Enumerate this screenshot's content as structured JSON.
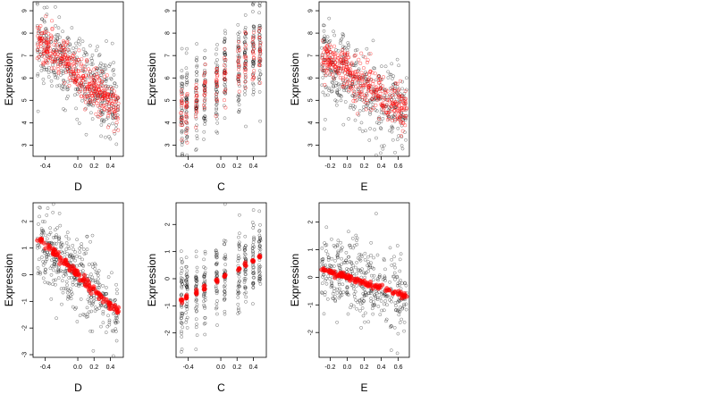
{
  "colors": {
    "points": "#000000",
    "fitted": "#ff0000",
    "frame": "#000000"
  },
  "chart_data": [
    {
      "type": "scatter",
      "xlabel": "D",
      "ylabel": "Expression",
      "xlim": [
        -0.55,
        0.56
      ],
      "ylim": [
        2.5,
        9.4
      ],
      "xticks": [
        -0.4,
        0.0,
        0.2,
        0.4
      ],
      "xtick_labels": [
        "-0.4",
        "0.0",
        "0.2",
        "0.4"
      ],
      "yticks": [
        3,
        4,
        5,
        6,
        7,
        8,
        9
      ],
      "ytick_labels": [
        "3",
        "4",
        "5",
        "6",
        "7",
        "8",
        "9"
      ],
      "observed": {
        "n": 400,
        "x_range": [
          -0.5,
          0.5
        ],
        "trend_start": 7.5,
        "trend_end": 4.9,
        "spread": 0.85
      },
      "fitted": {
        "style": "open",
        "n": 400,
        "x_range": [
          -0.5,
          0.5
        ],
        "trend_start": 7.7,
        "trend_end": 4.6,
        "spread": 0.45
      }
    },
    {
      "type": "scatter",
      "xlabel": "C",
      "ylabel": "Expression",
      "xlim": [
        -0.55,
        0.56
      ],
      "ylim": [
        2.5,
        9.4
      ],
      "xticks": [
        -0.4,
        0.0,
        0.2,
        0.4
      ],
      "xtick_labels": [
        "-0.4",
        "0.0",
        "0.2",
        "0.4"
      ],
      "yticks": [
        3,
        4,
        5,
        6,
        7,
        8,
        9
      ],
      "ytick_labels": [
        "3",
        "4",
        "5",
        "6",
        "7",
        "8",
        "9"
      ],
      "observed": {
        "n": 400,
        "x_groups": [
          -0.48,
          -0.42,
          -0.3,
          -0.2,
          -0.05,
          0.05,
          0.22,
          0.3,
          0.4,
          0.48
        ],
        "trend_start": 4.5,
        "trend_end": 7.2,
        "spread": 1.1
      },
      "fitted": {
        "style": "open",
        "n": 160,
        "x_groups": [
          -0.48,
          -0.42,
          -0.3,
          -0.2,
          -0.05,
          0.05,
          0.22,
          0.3,
          0.4,
          0.48
        ],
        "trend_start": 4.5,
        "trend_end": 7.2,
        "spread": 0.6
      }
    },
    {
      "type": "scatter",
      "xlabel": "E",
      "ylabel": "Expression",
      "xlim": [
        -0.33,
        0.73
      ],
      "ylim": [
        2.5,
        9.4
      ],
      "xticks": [
        -0.2,
        0.0,
        0.2,
        0.4,
        0.6
      ],
      "xtick_labels": [
        "-0.2",
        "0.0",
        "0.2",
        "0.4",
        "0.6"
      ],
      "yticks": [
        3,
        4,
        5,
        6,
        7,
        8,
        9
      ],
      "ytick_labels": [
        "3",
        "4",
        "5",
        "6",
        "7",
        "8",
        "9"
      ],
      "observed": {
        "n": 400,
        "x_range": [
          -0.3,
          0.7
        ],
        "trend_start": 6.8,
        "trend_end": 4.2,
        "spread": 0.9
      },
      "fitted": {
        "style": "open",
        "n": 400,
        "x_range": [
          -0.3,
          0.7
        ],
        "trend_start": 7.0,
        "trend_end": 4.4,
        "spread": 0.5
      }
    },
    {
      "type": "scatter",
      "xlabel": "D",
      "ylabel": "Expression",
      "xlim": [
        -0.55,
        0.56
      ],
      "ylim": [
        -3.1,
        2.7
      ],
      "xticks": [
        -0.4,
        0.0,
        0.2,
        0.4
      ],
      "xtick_labels": [
        "-0.4",
        "0.0",
        "0.2",
        "0.4"
      ],
      "yticks": [
        -3,
        -2,
        -1,
        0,
        1,
        2
      ],
      "ytick_labels": [
        "-3",
        "-2",
        "-1",
        "0",
        "1",
        "2"
      ],
      "observed": {
        "n": 400,
        "x_range": [
          -0.5,
          0.5
        ],
        "trend_start": 1.4,
        "trend_end": -1.4,
        "spread": 0.7
      },
      "fitted": {
        "style": "filled",
        "n": 110,
        "x_range": [
          -0.5,
          0.5
        ],
        "trend_start": 1.4,
        "trend_end": -1.4,
        "spread": 0.08
      }
    },
    {
      "type": "scatter",
      "xlabel": "C",
      "ylabel": "Expression",
      "xlim": [
        -0.55,
        0.56
      ],
      "ylim": [
        -2.9,
        2.8
      ],
      "xticks": [
        -0.4,
        0.0,
        0.2,
        0.4
      ],
      "xtick_labels": [
        "-0.4",
        "0.0",
        "0.2",
        "0.4"
      ],
      "yticks": [
        -2,
        -1,
        0,
        1,
        2
      ],
      "ytick_labels": [
        "-2",
        "-1",
        "0",
        "1",
        "2"
      ],
      "observed": {
        "n": 400,
        "x_groups": [
          -0.48,
          -0.42,
          -0.3,
          -0.2,
          -0.05,
          0.05,
          0.22,
          0.3,
          0.4,
          0.48
        ],
        "trend_start": -0.8,
        "trend_end": 0.8,
        "spread": 0.75
      },
      "fitted": {
        "style": "filled",
        "n": 45,
        "x_groups": [
          -0.48,
          -0.42,
          -0.3,
          -0.2,
          -0.05,
          0.05,
          0.22,
          0.3,
          0.4,
          0.48
        ],
        "trend_start": -0.8,
        "trend_end": 0.8,
        "spread": 0.04
      }
    },
    {
      "type": "scatter",
      "xlabel": "E",
      "ylabel": "Expression",
      "xlim": [
        -0.33,
        0.73
      ],
      "ylim": [
        -2.9,
        2.7
      ],
      "xticks": [
        -0.2,
        0.0,
        0.2,
        0.4,
        0.6
      ],
      "xtick_labels": [
        "-0.2",
        "0.0",
        "0.2",
        "0.4",
        "0.6"
      ],
      "yticks": [
        -2,
        -1,
        0,
        1,
        2
      ],
      "ytick_labels": [
        "-2",
        "-1",
        "0",
        "1",
        "2"
      ],
      "observed": {
        "n": 400,
        "x_range": [
          -0.3,
          0.7
        ],
        "trend_start": 0.3,
        "trend_end": -0.7,
        "spread": 0.7
      },
      "fitted": {
        "style": "filled",
        "n": 110,
        "x_range": [
          -0.3,
          0.7
        ],
        "trend_start": 0.3,
        "trend_end": -0.7,
        "spread": 0.05
      }
    }
  ]
}
